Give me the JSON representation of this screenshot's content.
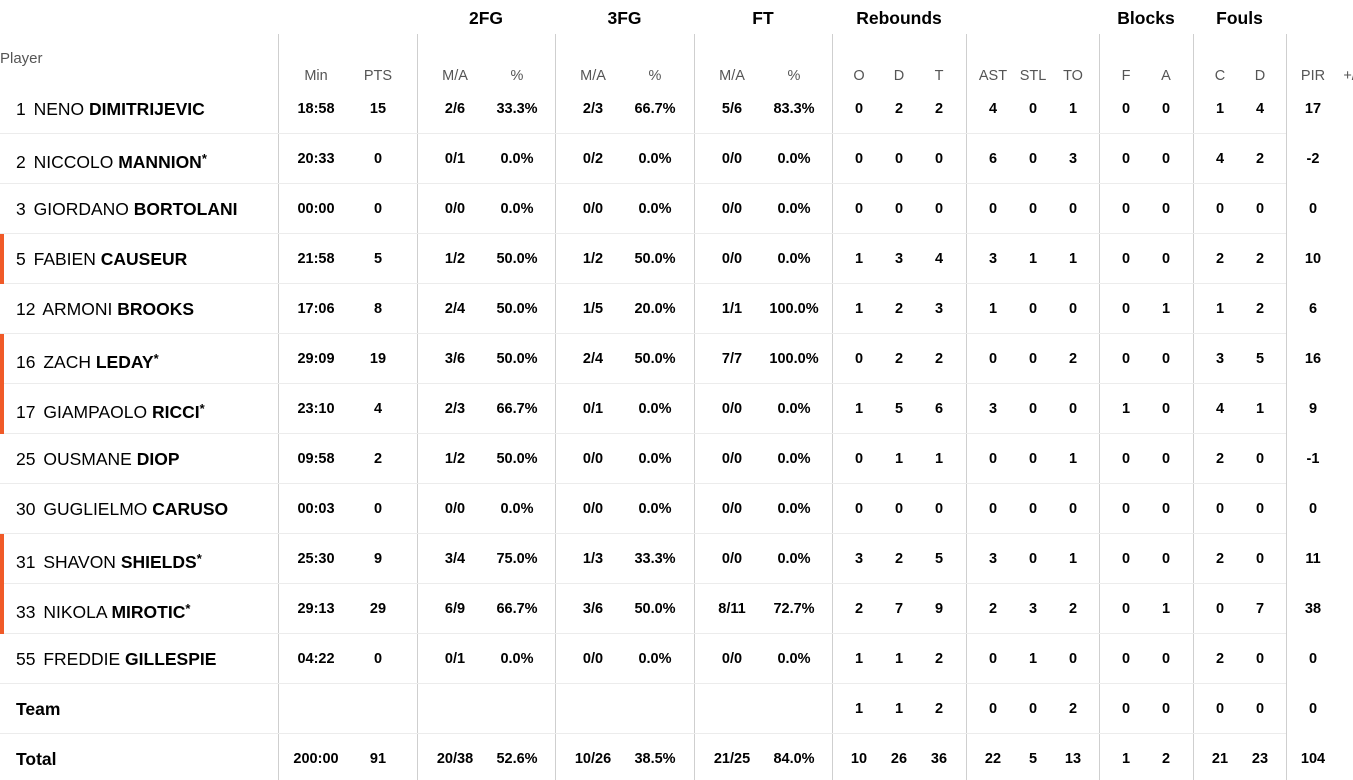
{
  "table": {
    "player_header": "Player",
    "groups": [
      {
        "id": "g-2fg",
        "label": "2FG"
      },
      {
        "id": "g-3fg",
        "label": "3FG"
      },
      {
        "id": "g-ft",
        "label": "FT"
      },
      {
        "id": "g-reb",
        "label": "Rebounds"
      },
      {
        "id": "g-blk",
        "label": "Blocks"
      },
      {
        "id": "g-fouls",
        "label": "Fouls"
      }
    ],
    "columns": [
      "Min",
      "PTS",
      "M/A",
      "%",
      "M/A",
      "%",
      "M/A",
      "%",
      "O",
      "D",
      "T",
      "AST",
      "STL",
      "TO",
      "F",
      "A",
      "C",
      "D",
      "PIR",
      "+/-"
    ],
    "rows": [
      {
        "number": "1",
        "first": "NENO",
        "last": "DIMITRIJEVIC",
        "star": "",
        "accent": false,
        "stats": [
          "18:58",
          "15",
          "2/6",
          "33.3%",
          "2/3",
          "66.7%",
          "5/6",
          "83.3%",
          "0",
          "2",
          "2",
          "4",
          "0",
          "1",
          "0",
          "0",
          "1",
          "4",
          "17",
          ""
        ]
      },
      {
        "number": "2",
        "first": "NICCOLO",
        "last": "MANNION",
        "star": "*",
        "accent": false,
        "stats": [
          "20:33",
          "0",
          "0/1",
          "0.0%",
          "0/2",
          "0.0%",
          "0/0",
          "0.0%",
          "0",
          "0",
          "0",
          "6",
          "0",
          "3",
          "0",
          "0",
          "4",
          "2",
          "-2",
          ""
        ]
      },
      {
        "number": "3",
        "first": "GIORDANO",
        "last": "BORTOLANI",
        "star": "",
        "accent": false,
        "stats": [
          "00:00",
          "0",
          "0/0",
          "0.0%",
          "0/0",
          "0.0%",
          "0/0",
          "0.0%",
          "0",
          "0",
          "0",
          "0",
          "0",
          "0",
          "0",
          "0",
          "0",
          "0",
          "0",
          ""
        ]
      },
      {
        "number": "5",
        "first": "FABIEN",
        "last": "CAUSEUR",
        "star": "",
        "accent": true,
        "stats": [
          "21:58",
          "5",
          "1/2",
          "50.0%",
          "1/2",
          "50.0%",
          "0/0",
          "0.0%",
          "1",
          "3",
          "4",
          "3",
          "1",
          "1",
          "0",
          "0",
          "2",
          "2",
          "10",
          ""
        ]
      },
      {
        "number": "12",
        "first": "ARMONI",
        "last": "BROOKS",
        "star": "",
        "accent": false,
        "stats": [
          "17:06",
          "8",
          "2/4",
          "50.0%",
          "1/5",
          "20.0%",
          "1/1",
          "100.0%",
          "1",
          "2",
          "3",
          "1",
          "0",
          "0",
          "0",
          "1",
          "1",
          "2",
          "6",
          ""
        ]
      },
      {
        "number": "16",
        "first": "ZACH",
        "last": "LEDAY",
        "star": "*",
        "accent": true,
        "stats": [
          "29:09",
          "19",
          "3/6",
          "50.0%",
          "2/4",
          "50.0%",
          "7/7",
          "100.0%",
          "0",
          "2",
          "2",
          "0",
          "0",
          "2",
          "0",
          "0",
          "3",
          "5",
          "16",
          ""
        ]
      },
      {
        "number": "17",
        "first": "GIAMPAOLO",
        "last": "RICCI",
        "star": "*",
        "accent": true,
        "stats": [
          "23:10",
          "4",
          "2/3",
          "66.7%",
          "0/1",
          "0.0%",
          "0/0",
          "0.0%",
          "1",
          "5",
          "6",
          "3",
          "0",
          "0",
          "1",
          "0",
          "4",
          "1",
          "9",
          ""
        ]
      },
      {
        "number": "25",
        "first": "OUSMANE",
        "last": "DIOP",
        "star": "",
        "accent": false,
        "stats": [
          "09:58",
          "2",
          "1/2",
          "50.0%",
          "0/0",
          "0.0%",
          "0/0",
          "0.0%",
          "0",
          "1",
          "1",
          "0",
          "0",
          "1",
          "0",
          "0",
          "2",
          "0",
          "-1",
          ""
        ]
      },
      {
        "number": "30",
        "first": "GUGLIELMO",
        "last": "CARUSO",
        "star": "",
        "accent": false,
        "stats": [
          "00:03",
          "0",
          "0/0",
          "0.0%",
          "0/0",
          "0.0%",
          "0/0",
          "0.0%",
          "0",
          "0",
          "0",
          "0",
          "0",
          "0",
          "0",
          "0",
          "0",
          "0",
          "0",
          ""
        ]
      },
      {
        "number": "31",
        "first": "SHAVON",
        "last": "SHIELDS",
        "star": "*",
        "accent": true,
        "stats": [
          "25:30",
          "9",
          "3/4",
          "75.0%",
          "1/3",
          "33.3%",
          "0/0",
          "0.0%",
          "3",
          "2",
          "5",
          "3",
          "0",
          "1",
          "0",
          "0",
          "2",
          "0",
          "11",
          ""
        ]
      },
      {
        "number": "33",
        "first": "NIKOLA",
        "last": "MIROTIC",
        "star": "*",
        "accent": true,
        "stats": [
          "29:13",
          "29",
          "6/9",
          "66.7%",
          "3/6",
          "50.0%",
          "8/11",
          "72.7%",
          "2",
          "7",
          "9",
          "2",
          "3",
          "2",
          "0",
          "1",
          "0",
          "7",
          "38",
          ""
        ]
      },
      {
        "number": "55",
        "first": "FREDDIE",
        "last": "GILLESPIE",
        "star": "",
        "accent": false,
        "stats": [
          "04:22",
          "0",
          "0/1",
          "0.0%",
          "0/0",
          "0.0%",
          "0/0",
          "0.0%",
          "1",
          "1",
          "2",
          "0",
          "1",
          "0",
          "0",
          "0",
          "2",
          "0",
          "0",
          ""
        ]
      }
    ],
    "team_row": {
      "label": "Team",
      "stats": [
        "",
        "",
        "",
        "",
        "",
        "",
        "",
        "",
        "1",
        "1",
        "2",
        "0",
        "0",
        "2",
        "0",
        "0",
        "0",
        "0",
        "0",
        ""
      ]
    },
    "total_row": {
      "label": "Total",
      "stats": [
        "200:00",
        "91",
        "20/38",
        "52.6%",
        "10/26",
        "38.5%",
        "21/25",
        "84.0%",
        "10",
        "26",
        "36",
        "22",
        "5",
        "13",
        "1",
        "2",
        "21",
        "23",
        "104",
        ""
      ]
    },
    "colors": {
      "starter_accent": "#f05a28",
      "divider": "#cfcfcf",
      "row_separator": "#ececec"
    }
  }
}
